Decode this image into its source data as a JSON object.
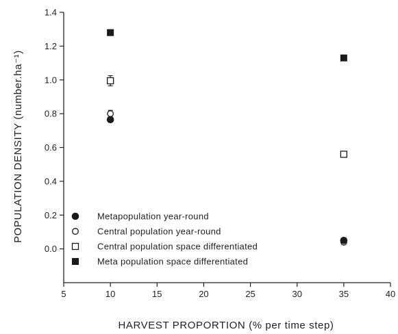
{
  "chart_data": {
    "type": "scatter",
    "title": "",
    "xlabel": "HARVEST PROPORTION (% per time step)",
    "ylabel": "POPULATION DENSITY (number.ha⁻¹)",
    "xlim": [
      5,
      40
    ],
    "ylim": [
      -0.2,
      1.4
    ],
    "x_ticks": [
      5,
      10,
      15,
      20,
      25,
      30,
      35,
      40
    ],
    "x_tick_labels": [
      "5",
      "10",
      "15",
      "20",
      "25",
      "30",
      "35",
      "40"
    ],
    "y_ticks": [
      0.0,
      0.2,
      0.4,
      0.6,
      0.8,
      1.0,
      1.2,
      1.4
    ],
    "y_tick_labels": [
      "0.0",
      "0.2",
      "0.4",
      "0.6",
      "0.8",
      "1.0",
      "1.2",
      "1.4"
    ],
    "grid": false,
    "legend_position": "bottom-left",
    "series": [
      {
        "name": "Metapopulation year-round",
        "marker": "filled-circle",
        "color": "#1a1a1a",
        "x": [
          10,
          35
        ],
        "y": [
          0.765,
          0.05
        ],
        "err": [
          0.015,
          0.0
        ]
      },
      {
        "name": "Central population year-round",
        "marker": "open-circle",
        "color": "#1a1a1a",
        "x": [
          10,
          35
        ],
        "y": [
          0.8,
          0.04
        ],
        "err": [
          0.02,
          0.0
        ]
      },
      {
        "name": "Central population space differentiated",
        "marker": "open-square",
        "color": "#1a1a1a",
        "x": [
          10,
          35
        ],
        "y": [
          0.995,
          0.56
        ],
        "err": [
          0.03,
          0.0
        ]
      },
      {
        "name": "Meta population space differentiated",
        "marker": "filled-square",
        "color": "#1a1a1a",
        "x": [
          10,
          35
        ],
        "y": [
          1.28,
          1.13
        ],
        "err": [
          0.015,
          0.0
        ]
      }
    ]
  }
}
